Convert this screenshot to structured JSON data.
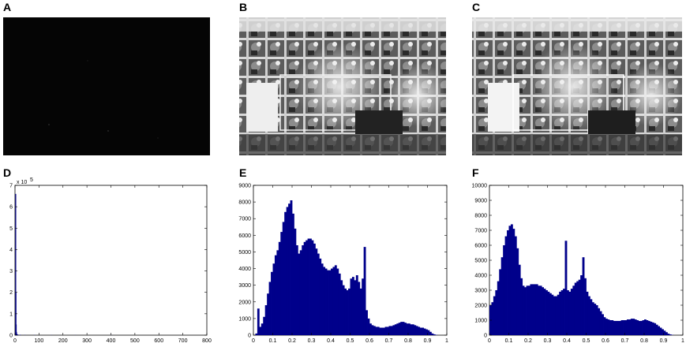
{
  "panels": {
    "A": "A",
    "B": "B",
    "C": "C",
    "D": "D",
    "E": "E",
    "F": "F"
  },
  "colors": {
    "histogram": "#00008b",
    "dark_image": "#050505"
  },
  "images": [
    {
      "panel": "A",
      "content": "very dark image (nearly black)"
    },
    {
      "panel": "B",
      "content": "grayscale photo of atrium with trees and glass walls"
    },
    {
      "panel": "C",
      "content": "grayscale photo of atrium with trees and glass walls (equalized)"
    }
  ],
  "chart_data": [
    {
      "panel": "D",
      "type": "bar",
      "xlim": [
        0,
        800
      ],
      "ylim": [
        0,
        7
      ],
      "y_multiplier_label": "x 10",
      "y_multiplier_exp": "5",
      "x_ticks": [
        "0",
        "100",
        "200",
        "300",
        "400",
        "500",
        "600",
        "700",
        "800"
      ],
      "y_ticks": [
        "0",
        "1",
        "2",
        "3",
        "4",
        "5",
        "6",
        "7"
      ],
      "x": [
        1,
        2,
        3,
        4,
        6,
        10,
        20,
        40,
        80,
        150,
        250,
        400
      ],
      "values": [
        6.6,
        2.0,
        0.5,
        0.15,
        0.06,
        0.03,
        0.02,
        0.01,
        0.01,
        0.008,
        0.006,
        0.005
      ]
    },
    {
      "panel": "E",
      "type": "bar",
      "xlim": [
        0,
        1
      ],
      "ylim": [
        0,
        9000
      ],
      "x_ticks": [
        "0",
        "0.1",
        "0.2",
        "0.3",
        "0.4",
        "0.5",
        "0.6",
        "0.7",
        "0.8",
        "0.9",
        "1"
      ],
      "y_ticks": [
        "0",
        "1000",
        "2000",
        "3000",
        "4000",
        "5000",
        "6000",
        "7000",
        "8000",
        "9000"
      ],
      "x": [
        0.0,
        0.01,
        0.02,
        0.03,
        0.04,
        0.05,
        0.06,
        0.07,
        0.08,
        0.09,
        0.1,
        0.11,
        0.12,
        0.13,
        0.14,
        0.15,
        0.16,
        0.17,
        0.18,
        0.19,
        0.2,
        0.21,
        0.22,
        0.23,
        0.24,
        0.25,
        0.26,
        0.27,
        0.28,
        0.29,
        0.3,
        0.31,
        0.32,
        0.33,
        0.34,
        0.35,
        0.36,
        0.37,
        0.38,
        0.39,
        0.4,
        0.41,
        0.42,
        0.43,
        0.44,
        0.45,
        0.46,
        0.47,
        0.48,
        0.49,
        0.5,
        0.51,
        0.52,
        0.53,
        0.54,
        0.55,
        0.56,
        0.57,
        0.58,
        0.59,
        0.6,
        0.61,
        0.62,
        0.63,
        0.64,
        0.65,
        0.66,
        0.67,
        0.68,
        0.69,
        0.7,
        0.71,
        0.72,
        0.73,
        0.74,
        0.75,
        0.76,
        0.77,
        0.78,
        0.79,
        0.8,
        0.81,
        0.82,
        0.83,
        0.84,
        0.85,
        0.86,
        0.87,
        0.88,
        0.89,
        0.9,
        0.91,
        0.92,
        0.93,
        0.94,
        0.95
      ],
      "values": [
        0,
        100,
        1600,
        500,
        700,
        1100,
        1800,
        2500,
        3200,
        3800,
        4300,
        4800,
        5100,
        5600,
        6200,
        6800,
        7400,
        7700,
        7900,
        8100,
        7300,
        6400,
        5400,
        4900,
        5100,
        5400,
        5600,
        5700,
        5800,
        5800,
        5700,
        5500,
        5200,
        4900,
        4600,
        4300,
        4100,
        4000,
        3900,
        3900,
        4000,
        4100,
        4200,
        4000,
        3700,
        3300,
        3000,
        2800,
        2700,
        2800,
        3400,
        3500,
        3300,
        3600,
        3200,
        2800,
        3400,
        5300,
        1500,
        1000,
        700,
        600,
        550,
        500,
        500,
        450,
        450,
        450,
        500,
        500,
        550,
        550,
        600,
        650,
        700,
        750,
        800,
        800,
        750,
        700,
        700,
        650,
        650,
        600,
        550,
        500,
        450,
        450,
        400,
        350,
        300,
        200,
        100,
        50,
        20,
        0
      ]
    },
    {
      "panel": "F",
      "type": "bar",
      "xlim": [
        0,
        1
      ],
      "ylim": [
        0,
        10000
      ],
      "x_ticks": [
        "0",
        "0.1",
        "0.2",
        "0.3",
        "0.4",
        "0.5",
        "0.6",
        "0.7",
        "0.8",
        "0.9",
        "1"
      ],
      "y_ticks": [
        "0",
        "1000",
        "2000",
        "3000",
        "4000",
        "5000",
        "6000",
        "7000",
        "8000",
        "9000",
        "10000"
      ],
      "x": [
        0.0,
        0.01,
        0.02,
        0.03,
        0.04,
        0.05,
        0.06,
        0.07,
        0.08,
        0.09,
        0.1,
        0.11,
        0.12,
        0.13,
        0.14,
        0.15,
        0.16,
        0.17,
        0.18,
        0.19,
        0.2,
        0.21,
        0.22,
        0.23,
        0.24,
        0.25,
        0.26,
        0.27,
        0.28,
        0.29,
        0.3,
        0.31,
        0.32,
        0.33,
        0.34,
        0.35,
        0.36,
        0.37,
        0.38,
        0.39,
        0.4,
        0.41,
        0.42,
        0.43,
        0.44,
        0.45,
        0.46,
        0.47,
        0.48,
        0.49,
        0.5,
        0.51,
        0.52,
        0.53,
        0.54,
        0.55,
        0.56,
        0.57,
        0.58,
        0.59,
        0.6,
        0.61,
        0.62,
        0.63,
        0.64,
        0.65,
        0.66,
        0.67,
        0.68,
        0.69,
        0.7,
        0.71,
        0.72,
        0.73,
        0.74,
        0.75,
        0.76,
        0.77,
        0.78,
        0.79,
        0.8,
        0.81,
        0.82,
        0.83,
        0.84,
        0.85,
        0.86,
        0.87,
        0.88,
        0.89,
        0.9,
        0.91,
        0.92,
        0.93,
        0.94,
        0.95
      ],
      "values": [
        2000,
        2200,
        2600,
        3000,
        3600,
        4400,
        5200,
        6000,
        6600,
        7000,
        7300,
        7400,
        7100,
        6600,
        5800,
        4700,
        3800,
        3300,
        3200,
        3300,
        3300,
        3400,
        3400,
        3400,
        3400,
        3300,
        3300,
        3200,
        3100,
        3000,
        2900,
        2800,
        2700,
        2600,
        2600,
        2700,
        2900,
        3000,
        3100,
        6300,
        3000,
        2900,
        3100,
        3300,
        3500,
        3600,
        3700,
        4000,
        5200,
        3800,
        2900,
        2600,
        2400,
        2200,
        2100,
        2000,
        1800,
        1600,
        1400,
        1200,
        1100,
        1050,
        1000,
        1000,
        950,
        950,
        950,
        950,
        1000,
        1000,
        1000,
        1050,
        1050,
        1100,
        1100,
        1050,
        1000,
        950,
        950,
        1000,
        1050,
        1000,
        950,
        900,
        850,
        800,
        700,
        600,
        500,
        400,
        300,
        200,
        100,
        50,
        20,
        0
      ]
    }
  ]
}
